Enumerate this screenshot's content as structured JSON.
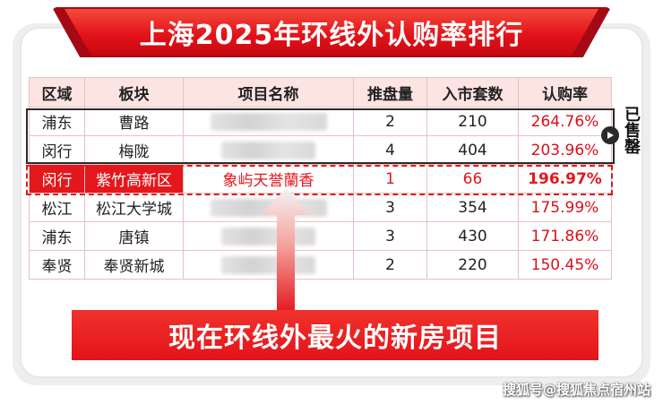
{
  "title": "上海2025年环线外认购率排行",
  "table": {
    "headers": [
      "区域",
      "板块",
      "项目名称",
      "推盘量",
      "入市套数",
      "认购率"
    ],
    "rows": [
      {
        "district": "浦东",
        "block": "曹路",
        "project": "",
        "supply": "2",
        "units": "210",
        "rate": "264.76%"
      },
      {
        "district": "闵行",
        "block": "梅陇",
        "project": "",
        "supply": "4",
        "units": "404",
        "rate": "203.96%"
      },
      {
        "district": "闵行",
        "block": "紫竹高新区",
        "project": "象屿天誉蘭香",
        "supply": "1",
        "units": "66",
        "rate": "196.97%"
      },
      {
        "district": "松江",
        "block": "松江大学城",
        "project": "",
        "supply": "3",
        "units": "354",
        "rate": "175.99%"
      },
      {
        "district": "浦东",
        "block": "唐镇",
        "project": "",
        "supply": "3",
        "units": "430",
        "rate": "171.86%"
      },
      {
        "district": "奉贤",
        "block": "奉贤新城",
        "project": "",
        "supply": "2",
        "units": "220",
        "rate": "150.45%"
      }
    ]
  },
  "sold_label": "已售罄",
  "slogan": "现在环线外最火的新房项目",
  "watermark": "搜狐号@搜狐焦点宿州站",
  "colors": {
    "accent": "#e3171c",
    "header_bg": "#fbe4e2"
  }
}
